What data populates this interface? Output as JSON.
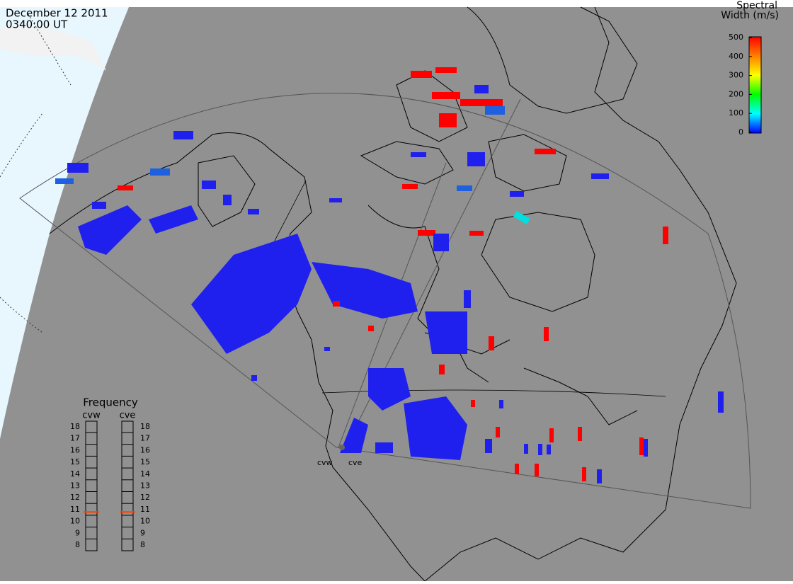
{
  "header": {
    "date": "December 12 2011",
    "time": "0340:00 UT"
  },
  "colorbar": {
    "title": [
      "Spectral",
      "Width (m/s)"
    ],
    "lim": [
      0,
      500
    ],
    "ticks": [
      0,
      100,
      200,
      300,
      400,
      500
    ]
  },
  "frequency": {
    "title": "Frequency",
    "lim": [
      8,
      18
    ],
    "ticks": [
      8,
      9,
      10,
      11,
      12,
      13,
      14,
      15,
      16,
      17,
      18
    ],
    "radars": [
      {
        "name": "cvw",
        "value": 10.8
      },
      {
        "name": "cve",
        "value": 10.8
      }
    ]
  },
  "stations": [
    "cvw",
    "cve"
  ]
}
